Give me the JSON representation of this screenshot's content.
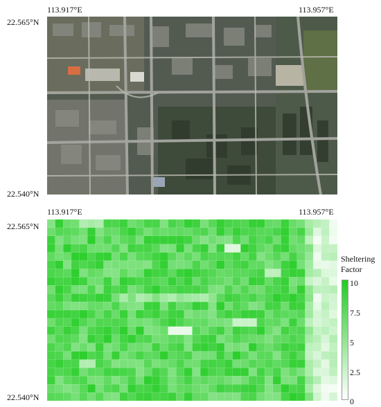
{
  "top_panel": {
    "lon_left": "113.917°E",
    "lon_right": "113.957°E",
    "lat_top": "22.565°N",
    "lat_bottom": "22.540°N"
  },
  "bottom_panel": {
    "lon_left": "113.917°E",
    "lon_right": "113.957°E",
    "lat_top": "22.565°N",
    "lat_bottom": "22.540°N"
  },
  "legend": {
    "title_line1": "Sheltering",
    "title_line2": "Factor",
    "ticks": [
      "10",
      "7.5",
      "5",
      "2.5",
      "0"
    ],
    "color_max": "#22cc22",
    "color_min": "#ffffff"
  }
}
